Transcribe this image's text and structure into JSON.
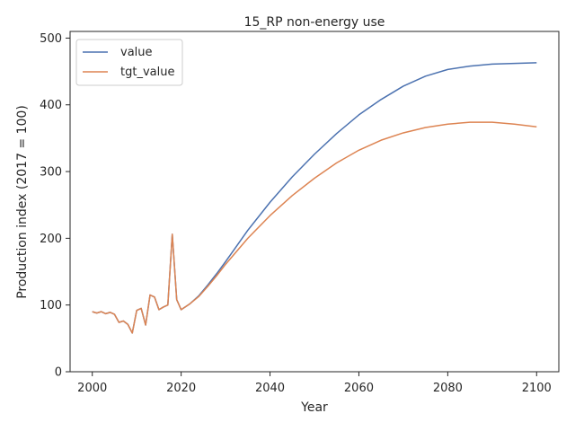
{
  "chart_data": {
    "type": "line",
    "title": "15_RP non-energy use",
    "xlabel": "Year",
    "ylabel": "Production index (2017 = 100)",
    "xlim": [
      1995,
      2105
    ],
    "ylim": [
      0,
      510
    ],
    "xticks": [
      2000,
      2020,
      2040,
      2060,
      2080,
      2100
    ],
    "yticks": [
      0,
      100,
      200,
      300,
      400,
      500
    ],
    "grid": false,
    "legend_position": "top-left",
    "series": [
      {
        "name": "value",
        "color": "#4c72b0",
        "x": [
          2000,
          2001,
          2002,
          2003,
          2004,
          2005,
          2006,
          2007,
          2008,
          2009,
          2010,
          2011,
          2012,
          2013,
          2014,
          2015,
          2016,
          2017,
          2018,
          2019,
          2020,
          2022,
          2024,
          2026,
          2028,
          2030,
          2035,
          2040,
          2045,
          2050,
          2055,
          2060,
          2065,
          2070,
          2075,
          2080,
          2085,
          2090,
          2095,
          2100
        ],
        "values": [
          90,
          88,
          90,
          87,
          89,
          86,
          74,
          76,
          71,
          58,
          92,
          95,
          70,
          115,
          112,
          93,
          97,
          100,
          206,
          108,
          93,
          102,
          114,
          130,
          147,
          165,
          212,
          254,
          292,
          326,
          357,
          385,
          408,
          428,
          443,
          453,
          458,
          461,
          462,
          463
        ]
      },
      {
        "name": "tgt_value",
        "color": "#dd8452",
        "x": [
          2000,
          2001,
          2002,
          2003,
          2004,
          2005,
          2006,
          2007,
          2008,
          2009,
          2010,
          2011,
          2012,
          2013,
          2014,
          2015,
          2016,
          2017,
          2018,
          2019,
          2020,
          2022,
          2024,
          2026,
          2028,
          2030,
          2035,
          2040,
          2045,
          2050,
          2055,
          2060,
          2065,
          2070,
          2075,
          2080,
          2085,
          2088,
          2090,
          2095,
          2100
        ],
        "values": [
          90,
          88,
          90,
          87,
          89,
          86,
          74,
          76,
          71,
          58,
          92,
          95,
          70,
          115,
          112,
          93,
          97,
          100,
          206,
          108,
          93,
          102,
          113,
          128,
          144,
          161,
          200,
          234,
          264,
          290,
          313,
          332,
          347,
          358,
          366,
          371,
          374,
          374,
          374,
          371,
          367
        ]
      }
    ]
  }
}
